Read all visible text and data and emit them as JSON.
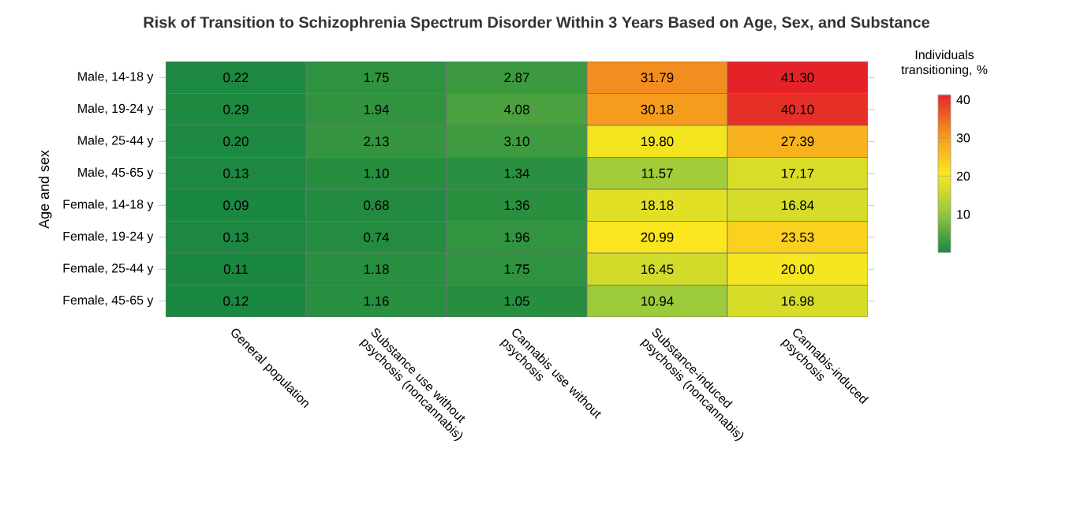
{
  "chart_data": {
    "type": "heatmap",
    "title": "Risk of Transition to Schizophrenia Spectrum Disorder Within 3 Years Based on Age, Sex, and Substance",
    "xlabel": null,
    "ylabel": "Age and sex",
    "clabel": "Individuals transitioning, %",
    "categories": [
      "General population",
      "Substance use without psychosis (noncannabis)",
      "Cannabis use without psychosis",
      "Substance-induced psychosis (noncannabis)",
      "Cannabis-induced psychosis"
    ],
    "y_categories": [
      "Male, 14-18 y",
      "Male, 19-24 y",
      "Male, 25-44 y",
      "Male, 45-65 y",
      "Female, 14-18 y",
      "Female, 19-24 y",
      "Female, 25-44 y",
      "Female, 45-65 y"
    ],
    "cells": [
      [
        0.22,
        1.75,
        2.87,
        31.79,
        41.3
      ],
      [
        0.29,
        1.94,
        4.08,
        30.18,
        40.1
      ],
      [
        0.2,
        2.13,
        3.1,
        19.8,
        27.39
      ],
      [
        0.13,
        1.1,
        1.34,
        11.57,
        17.17
      ],
      [
        0.09,
        0.68,
        1.36,
        18.18,
        16.84
      ],
      [
        0.13,
        0.74,
        1.96,
        20.99,
        23.53
      ],
      [
        0.11,
        1.18,
        1.75,
        16.45,
        20.0
      ],
      [
        0.12,
        1.16,
        1.05,
        10.94,
        16.98
      ]
    ],
    "cell_labels": [
      [
        "0.22",
        "1.75",
        "2.87",
        "31.79",
        "41.30"
      ],
      [
        "0.29",
        "1.94",
        "4.08",
        "30.18",
        "40.10"
      ],
      [
        "0.20",
        "2.13",
        "3.10",
        "19.80",
        "27.39"
      ],
      [
        "0.13",
        "1.10",
        "1.34",
        "11.57",
        "17.17"
      ],
      [
        "0.09",
        "0.68",
        "1.36",
        "18.18",
        "16.84"
      ],
      [
        "0.13",
        "0.74",
        "1.96",
        "20.99",
        "23.53"
      ],
      [
        "0.11",
        "1.18",
        "1.75",
        "16.45",
        "20.00"
      ],
      [
        "0.12",
        "1.16",
        "1.05",
        "10.94",
        "16.98"
      ]
    ],
    "clim": [
      0,
      41.3
    ],
    "cticks": [
      10,
      20,
      30,
      40
    ]
  }
}
